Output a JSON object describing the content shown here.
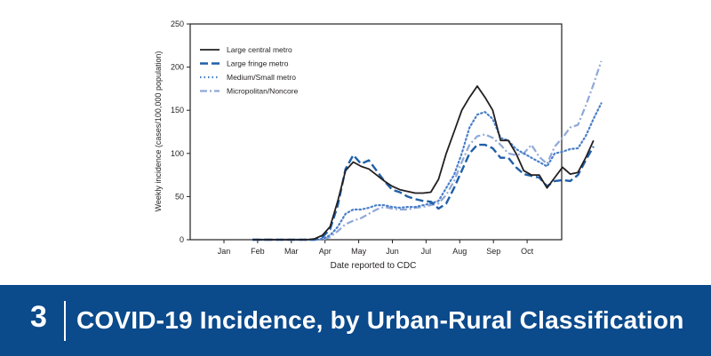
{
  "banner": {
    "number": "3",
    "title": "COVID-19 Incidence, by Urban-Rural Classification",
    "background": "#0b4a8b"
  },
  "chart_data": {
    "type": "line",
    "title": "",
    "xlabel": "Date reported to CDC",
    "ylabel": "Weekly incidence (cases/100,000 population)",
    "ylim": [
      0,
      250
    ],
    "yticks": [
      0,
      50,
      100,
      150,
      200,
      250
    ],
    "xticks": [
      "Jan",
      "Feb",
      "Mar",
      "Apr",
      "May",
      "Jun",
      "Jul",
      "Aug",
      "Sep",
      "Oct"
    ],
    "x_start_month_offset": 0.85,
    "x_step_months": 0.23,
    "grid": false,
    "legend": "top-left",
    "series": [
      {
        "name": "Large central metro",
        "color": "#231f20",
        "style": "solid",
        "values": [
          0,
          0,
          0,
          0,
          0,
          0,
          0,
          0,
          1,
          5,
          15,
          45,
          80,
          90,
          85,
          82,
          75,
          68,
          62,
          58,
          56,
          54,
          54,
          55,
          70,
          100,
          125,
          150,
          165,
          178,
          165,
          150,
          115,
          115,
          100,
          80,
          75,
          75,
          60,
          72,
          84,
          76,
          78,
          95,
          115
        ]
      },
      {
        "name": "Large fringe metro",
        "color": "#1f5fa8",
        "style": "dashed",
        "values": [
          0,
          0,
          0,
          0,
          0,
          0,
          0,
          0,
          0,
          3,
          12,
          40,
          82,
          98,
          88,
          92,
          80,
          68,
          58,
          55,
          50,
          47,
          45,
          44,
          36,
          42,
          60,
          80,
          100,
          110,
          110,
          106,
          95,
          95,
          84,
          76,
          74,
          72,
          62,
          68,
          69,
          68,
          75,
          92,
          108
        ]
      },
      {
        "name": "Medium/Small metro",
        "color": "#4a7fc8",
        "style": "dotted",
        "values": [
          0,
          0,
          0,
          0,
          0,
          0,
          0,
          0,
          0,
          1,
          5,
          15,
          30,
          35,
          35,
          37,
          40,
          40,
          38,
          37,
          38,
          38,
          40,
          42,
          45,
          60,
          75,
          100,
          130,
          145,
          148,
          140,
          118,
          115,
          105,
          100,
          95,
          90,
          85,
          100,
          102,
          105,
          106,
          120,
          140,
          158
        ]
      },
      {
        "name": "Micropolitan/Noncore",
        "color": "#8fa8d8",
        "style": "dashdot",
        "values": [
          0,
          0,
          0,
          0,
          0,
          0,
          0,
          0,
          0,
          0,
          3,
          10,
          18,
          22,
          25,
          30,
          35,
          38,
          36,
          35,
          35,
          37,
          38,
          40,
          42,
          52,
          68,
          90,
          110,
          120,
          122,
          118,
          110,
          100,
          98,
          100,
          110,
          96,
          88,
          108,
          118,
          130,
          133,
          155,
          180,
          207
        ]
      }
    ]
  }
}
